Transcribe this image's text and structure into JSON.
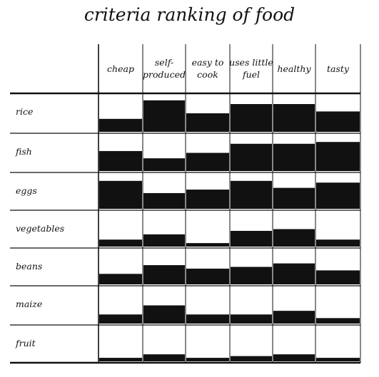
{
  "title": "criteria ranking of food",
  "chart_data": {
    "type": "heatmap",
    "title": "criteria ranking of food",
    "columns": [
      [
        "cheap"
      ],
      [
        "self-",
        "produced"
      ],
      [
        "easy to",
        "cook"
      ],
      [
        "uses little",
        "fuel"
      ],
      [
        "healthy"
      ],
      [
        "tasty"
      ]
    ],
    "rows": [
      "rice",
      "fish",
      "eggs",
      "vegetables",
      "beans",
      "maize",
      "fruit"
    ],
    "value_scale": [
      0,
      1
    ],
    "values": [
      [
        0.35,
        0.85,
        0.5,
        0.75,
        0.75,
        0.55
      ],
      [
        0.55,
        0.35,
        0.5,
        0.75,
        0.75,
        0.8
      ],
      [
        0.8,
        0.45,
        0.55,
        0.8,
        0.6,
        0.75
      ],
      [
        0.2,
        0.35,
        0.1,
        0.45,
        0.5,
        0.2
      ],
      [
        0.3,
        0.55,
        0.45,
        0.5,
        0.6,
        0.4
      ],
      [
        0.25,
        0.5,
        0.25,
        0.25,
        0.35,
        0.15
      ],
      [
        0.1,
        0.2,
        0.1,
        0.15,
        0.2,
        0.1
      ]
    ],
    "fill_color": "#111111",
    "grid": true
  }
}
